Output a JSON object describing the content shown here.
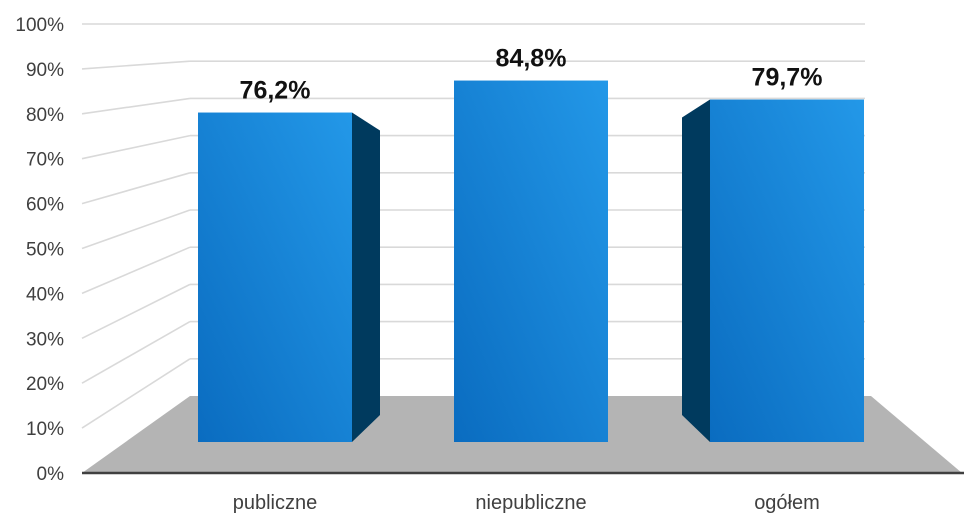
{
  "chart_data": {
    "type": "bar",
    "style": "3d-perspective",
    "categories": [
      "publiczne",
      "niepubliczne",
      "ogółem"
    ],
    "values": [
      76.2,
      84.8,
      79.7
    ],
    "data_labels": [
      "76,2%",
      "84,8%",
      "79,7%"
    ],
    "y_ticks": [
      "0%",
      "10%",
      "20%",
      "30%",
      "40%",
      "50%",
      "60%",
      "70%",
      "80%",
      "90%",
      "100%"
    ],
    "ylim": [
      0,
      100
    ],
    "grid": true,
    "legend": "none"
  },
  "colors": {
    "bar_front": "#0a72c8",
    "bar_front_light": "#2196e6",
    "bar_side_dark": "#003a5e",
    "floor": "#b4b4b4",
    "gridline": "#d9d9d9",
    "axis": "#404040"
  }
}
